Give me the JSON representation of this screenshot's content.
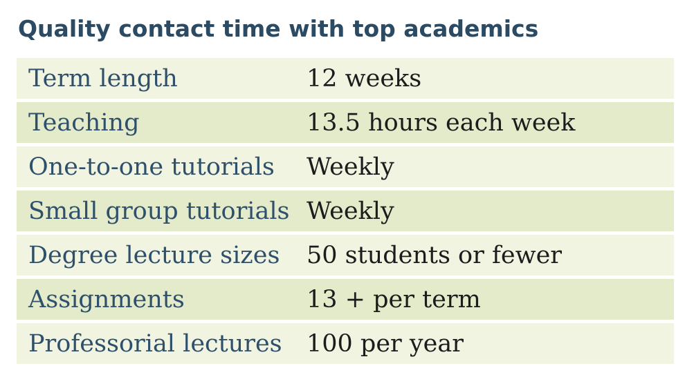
{
  "title": "Quality contact time with top academics",
  "rows": [
    {
      "label": "Term length",
      "value": "12 weeks"
    },
    {
      "label": "Teaching",
      "value": "13.5 hours each week"
    },
    {
      "label": "One-to-one tutorials",
      "value": "Weekly"
    },
    {
      "label": "Small group tutorials",
      "value": "Weekly"
    },
    {
      "label": "Degree lecture sizes",
      "value": "50 students or fewer"
    },
    {
      "label": "Assignments",
      "value": "13 + per term"
    },
    {
      "label": "Professorial lectures",
      "value": "100 per year"
    }
  ]
}
